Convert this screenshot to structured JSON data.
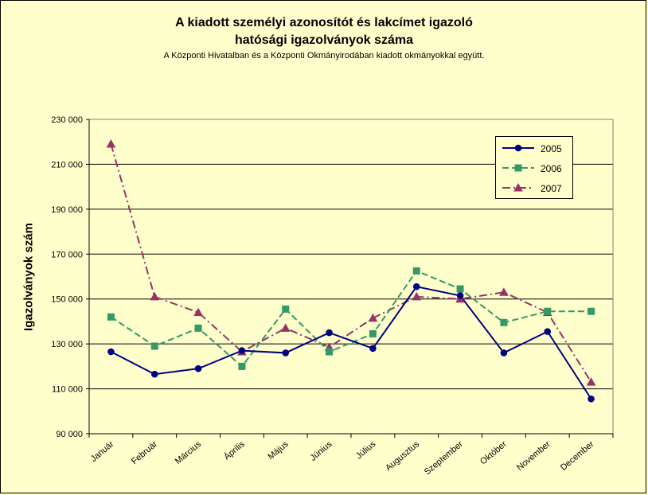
{
  "chart_data": {
    "type": "line",
    "title": "A kiadott személyi azonosítót és lakcímet igazoló",
    "title_line2": "hatósági igazolványok száma",
    "subtitle": "A Központi Hivatalban és a Központi Okmányirodában kiadott okmányokkal együtt.",
    "xlabel": "",
    "ylabel": "Igazolványok szám",
    "ylim": [
      90000,
      230000
    ],
    "yticks": [
      90000,
      110000,
      130000,
      150000,
      170000,
      190000,
      210000,
      230000
    ],
    "ytick_labels": [
      "90 000",
      "110 000",
      "130 000",
      "150 000",
      "170 000",
      "190 000",
      "210 000",
      "230 000"
    ],
    "categories": [
      "Január",
      "Február",
      "Március",
      "Április",
      "Május",
      "Június",
      "Július",
      "Augusztus",
      "Szeptember",
      "Október",
      "November",
      "December"
    ],
    "grid": true,
    "legend_position": "top-right",
    "series": [
      {
        "name": "2005",
        "color": "#000080",
        "marker": "circle",
        "dash": "solid",
        "values": [
          126500,
          116500,
          119000,
          127000,
          126000,
          135000,
          128000,
          155500,
          151500,
          126000,
          135500,
          105500
        ]
      },
      {
        "name": "2006",
        "color": "#339966",
        "marker": "square",
        "dash": "dashed",
        "values": [
          142000,
          129000,
          137000,
          120000,
          145500,
          126500,
          134500,
          162500,
          154500,
          139500,
          144500,
          144500
        ]
      },
      {
        "name": "2007",
        "color": "#993366",
        "marker": "triangle",
        "dash": "dashdot",
        "values": [
          219000,
          151000,
          144000,
          126500,
          137000,
          128500,
          141500,
          151000,
          150000,
          153000,
          144000,
          113000
        ]
      }
    ]
  }
}
